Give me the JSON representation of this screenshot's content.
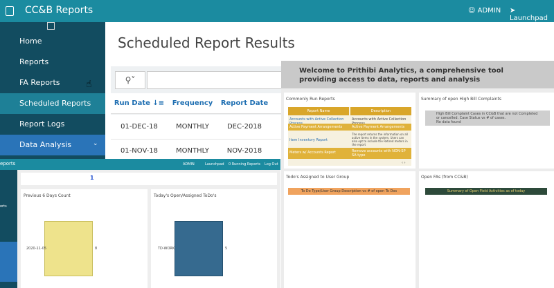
{
  "header": {
    "title": "CC&B Reports",
    "user": "ADMIN",
    "launchpad": "Launchpad"
  },
  "sidebar": {
    "items": [
      "Home",
      "Reports",
      "FA Reports",
      "Scheduled Reports",
      "Report Logs",
      "Data Analysis"
    ]
  },
  "main": {
    "title": "Scheduled Report Results",
    "table": {
      "columns": [
        "Run Date",
        "Frequency",
        "Report Date"
      ],
      "rows": [
        [
          "01-DEC-18",
          "MONTHLY",
          "DEC-2018"
        ],
        [
          "01-NOV-18",
          "MONTHLY",
          "NOV-2018"
        ]
      ]
    }
  },
  "analytics": {
    "welcome": "Welcome to Prithibi Analytics, a comprehensive tool providing access to data, reports and analysis",
    "commonly_run": {
      "title": "Commonly Run Reports",
      "columns": [
        "Report Name",
        "Description"
      ],
      "rows": [
        [
          "Accounts with Active Collection Process",
          "Accounts with Active Collection Process"
        ],
        [
          "Active Payment Arrangements",
          "Active Payment Arrangements"
        ],
        [
          "Item Inventory Report",
          "The report returns the information on all active items in the system. Users can also opt to include the Retired meters in the report"
        ],
        [
          "Meters w/ Accounts Report",
          "Remove accounts with NON-SP SA type"
        ]
      ]
    },
    "high_bill": {
      "title": "Summary of open High Bill Complaints",
      "text": "High Bill Complaint Cases in CC&B that are not Completed or cancelled. Case Status vs # of cases.",
      "empty": "No data found"
    },
    "todos": {
      "title": "Todo's Assigned to User Group",
      "bar": "To Do Type/User Group Description vs # of open To Dos"
    },
    "open_fas": {
      "title": "Open FAs (from CC&B)",
      "bar": "Summary of Open Field Activities as of today"
    }
  },
  "dashboard": {
    "brand": "eports",
    "links": [
      "ADMIN",
      "Launchpad",
      "0 Running Reports",
      "Log Out"
    ],
    "sidebar": [
      "orts"
    ],
    "count": "1",
    "previous": {
      "title": "Previous 6 Days Count",
      "label": "2020-11-05",
      "value": "8"
    },
    "todays": {
      "title": "Today's Open/Assigned ToDo's",
      "label": "TD-WORK",
      "value": "5"
    }
  }
}
